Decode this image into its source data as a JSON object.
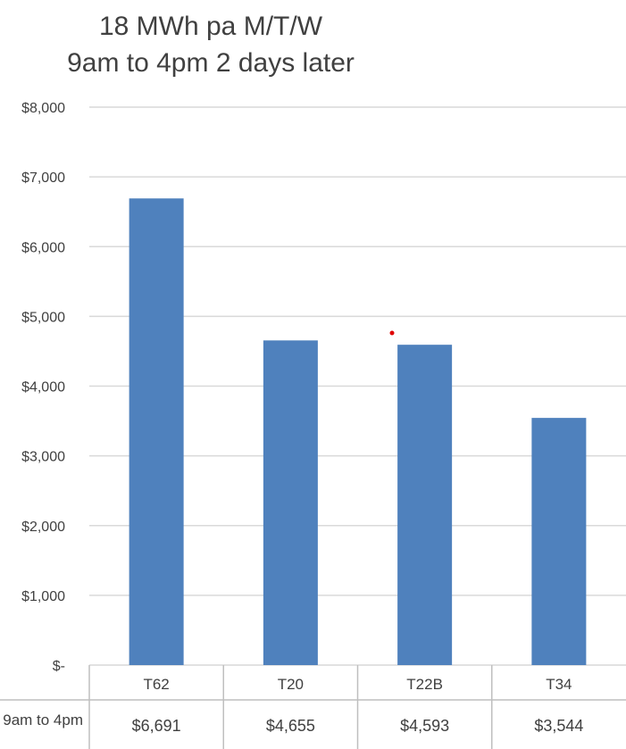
{
  "chart_data": {
    "type": "bar",
    "title_lines": [
      "18 MWh pa M/T/W",
      "9am to 4pm 2 days later"
    ],
    "categories": [
      "T62",
      "T20",
      "T22B",
      "T34"
    ],
    "series": [
      {
        "name": "9am to 4pm",
        "values": [
          6691,
          4655,
          4593,
          3544
        ],
        "value_labels": [
          "$6,691",
          "$4,655",
          "$4,593",
          "$3,544"
        ]
      }
    ],
    "ylim": [
      0,
      8000
    ],
    "yticks": [
      0,
      1000,
      2000,
      3000,
      4000,
      5000,
      6000,
      7000,
      8000
    ],
    "ytick_labels": [
      "$-",
      "$1,000",
      "$2,000",
      "$3,000",
      "$4,000",
      "$5,000",
      "$6,000",
      "$7,000",
      "$8,000"
    ],
    "grid": true,
    "data_table": true,
    "bar_color": "#4F81BD",
    "marker_color": "#E00000"
  }
}
